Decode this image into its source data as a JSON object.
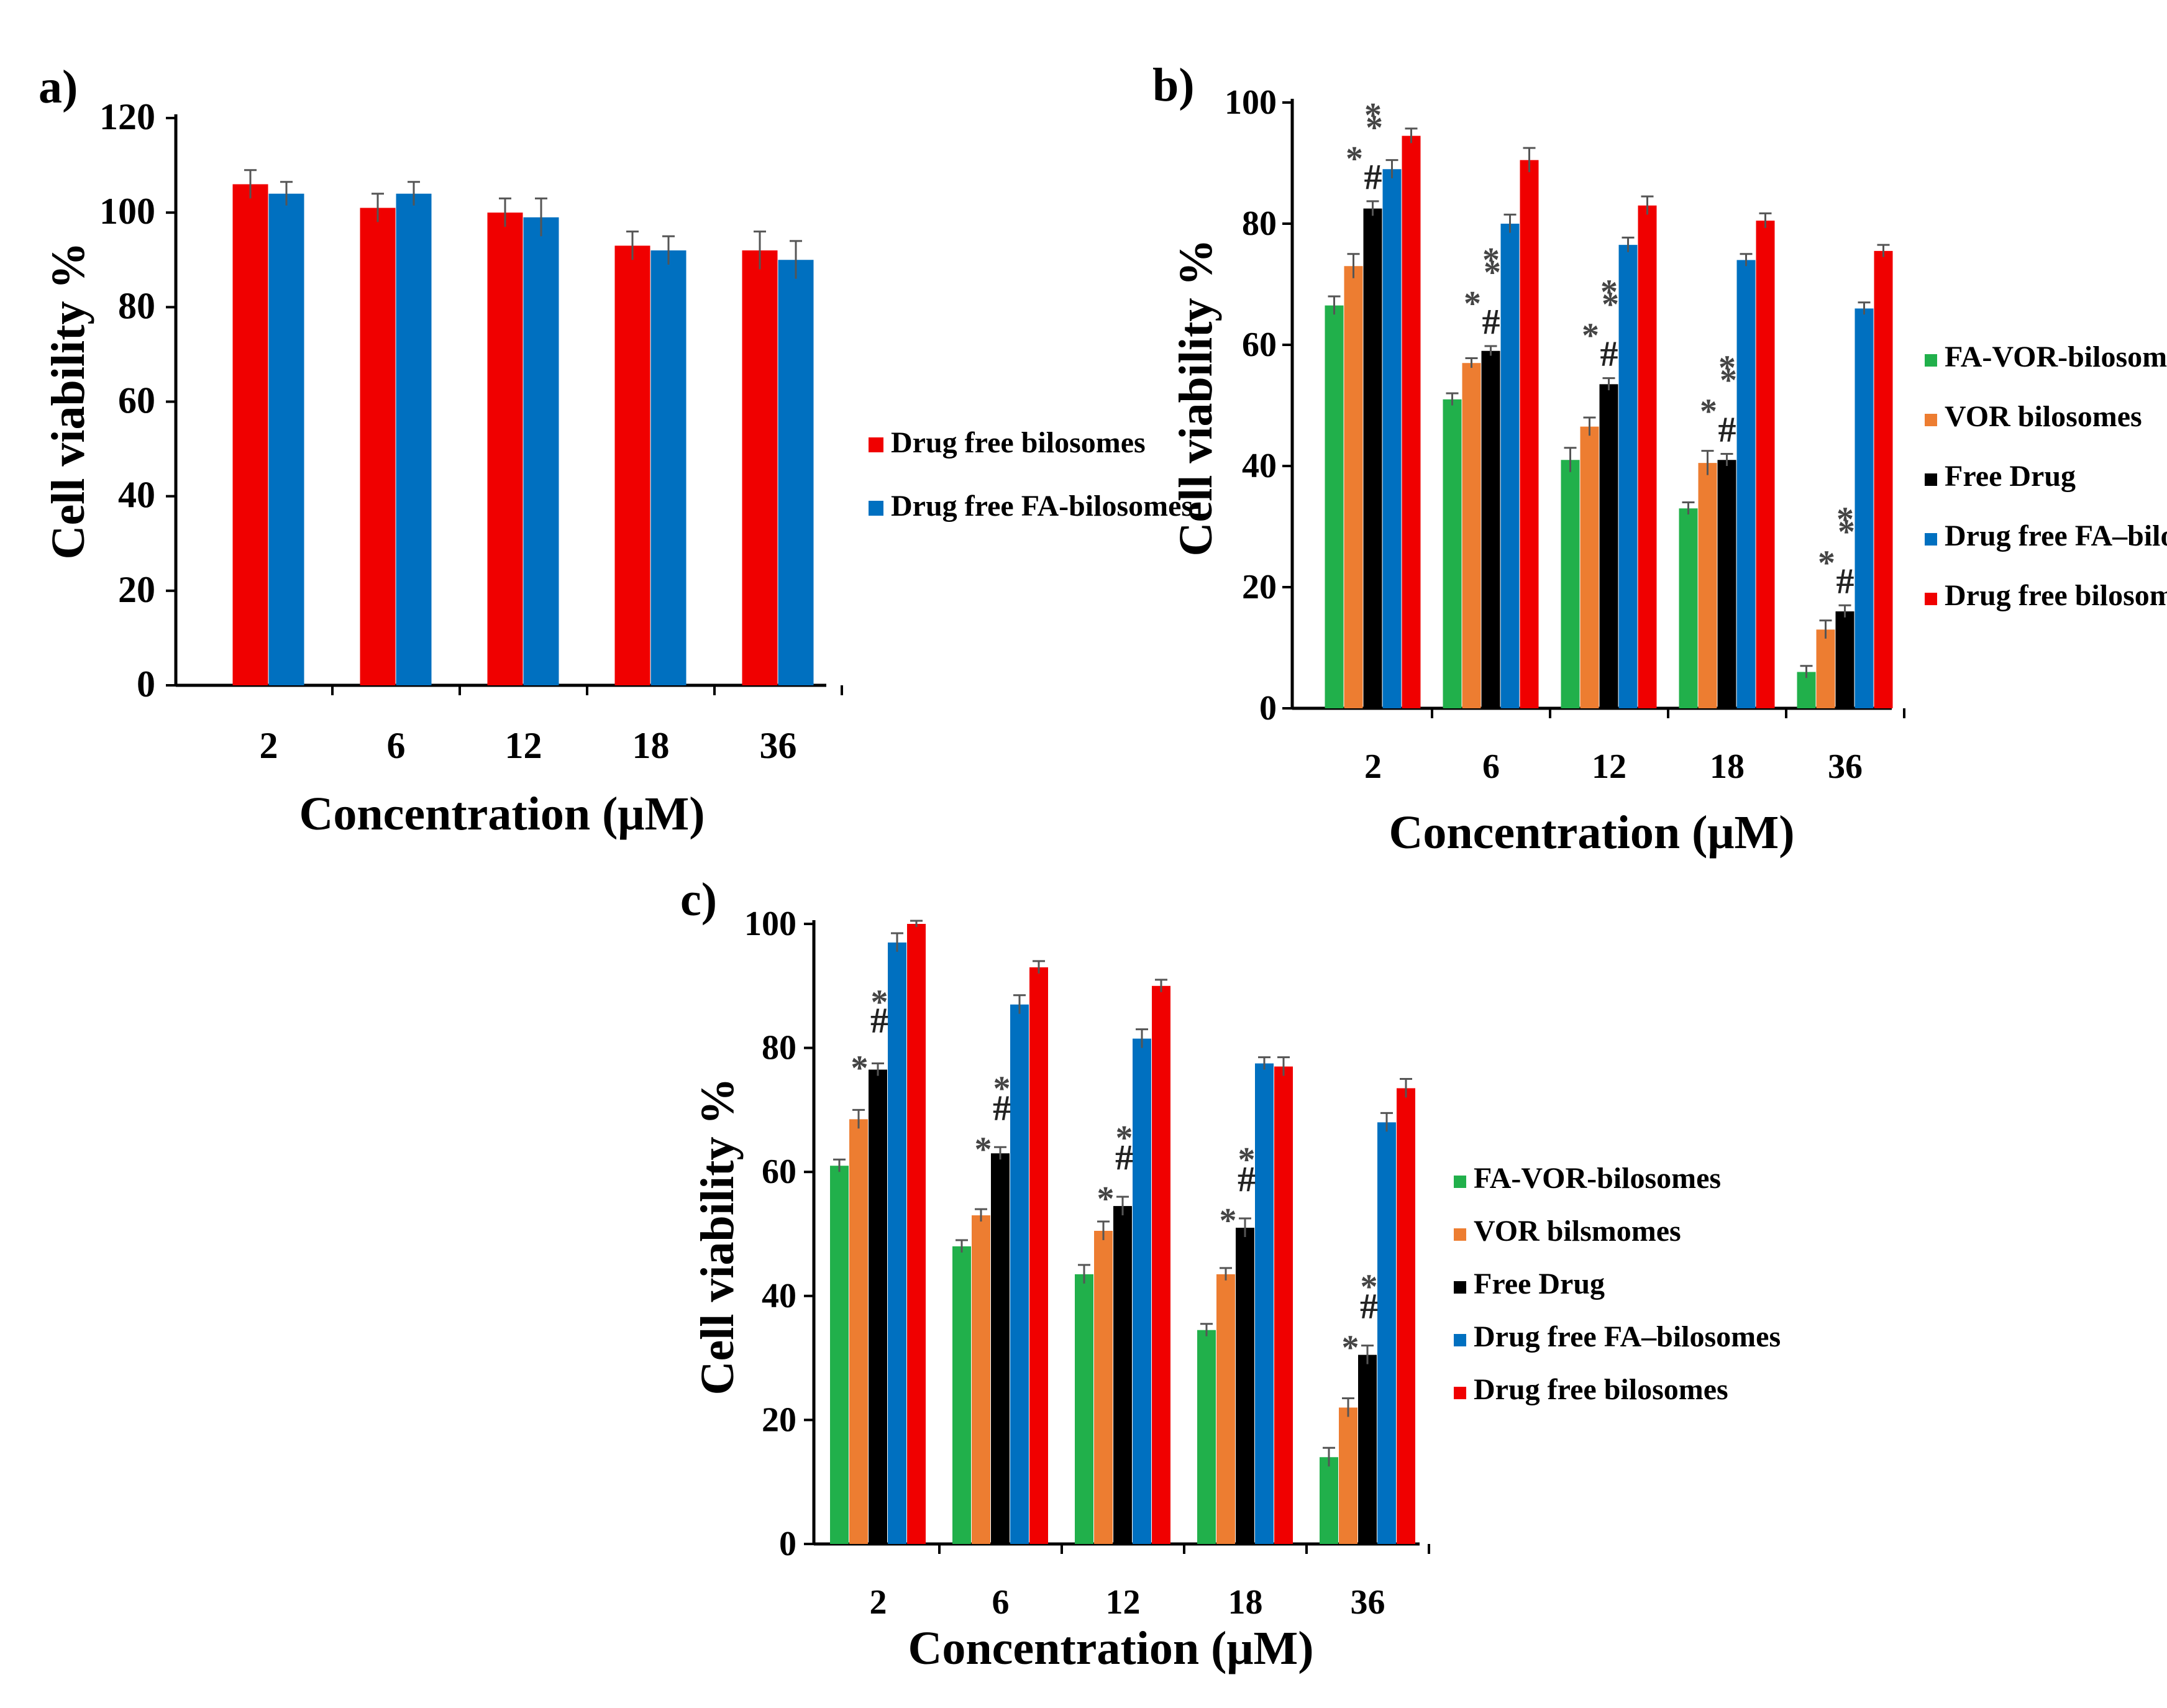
{
  "colors": {
    "red": "#f00000",
    "blue": "#0070c0",
    "green": "#21b04b",
    "orange": "#ed7d31",
    "black": "#000000"
  },
  "chart_data": [
    {
      "panel": "a)",
      "type": "bar",
      "title": "",
      "xlabel": "Concentration (μM)",
      "ylabel": "Cell viability %",
      "categories": [
        "2",
        "6",
        "12",
        "18",
        "36"
      ],
      "ylim": [
        0,
        120
      ],
      "yticks": [
        "0",
        "20",
        "40",
        "60",
        "80",
        "100",
        "120"
      ],
      "legend_position": "right",
      "series": [
        {
          "name": "Drug free bilosomes",
          "color": "red",
          "values": [
            106,
            101,
            100,
            93,
            92
          ],
          "errors": [
            3,
            3,
            3,
            3,
            4
          ]
        },
        {
          "name": "Drug free FA-bilosomes",
          "color": "blue",
          "values": [
            104,
            104,
            99,
            92,
            90
          ],
          "errors": [
            2.5,
            2.5,
            4,
            3,
            4
          ]
        }
      ],
      "annotations": []
    },
    {
      "panel": "b)",
      "type": "bar",
      "title": "",
      "xlabel": "Concentration (μM)",
      "ylabel": "Cell viability %",
      "categories": [
        "2",
        "6",
        "12",
        "18",
        "36"
      ],
      "ylim": [
        0,
        100
      ],
      "yticks": [
        "0",
        "20",
        "40",
        "60",
        "80",
        "100"
      ],
      "legend_position": "right",
      "series": [
        {
          "name": "FA-VOR-bilosomes",
          "color": "green",
          "values": [
            66.5,
            51,
            41,
            33,
            6
          ],
          "errors": [
            1.5,
            1,
            2,
            1,
            1
          ]
        },
        {
          "name": "VOR bilosomes",
          "color": "orange",
          "values": [
            73,
            57,
            46.5,
            40.5,
            13
          ],
          "errors": [
            2,
            0.8,
            1.5,
            2,
            1.5
          ]
        },
        {
          "name": "Free Drug",
          "color": "black",
          "values": [
            82.5,
            59,
            53.5,
            41,
            16
          ],
          "errors": [
            1.2,
            0.8,
            1,
            1,
            1
          ]
        },
        {
          "name": "Drug free FA–bilosomes",
          "color": "blue",
          "values": [
            89,
            80,
            76.5,
            74,
            66
          ],
          "errors": [
            1.5,
            1.5,
            1.2,
            1,
            1
          ]
        },
        {
          "name": "Drug free bilosomes",
          "color": "red",
          "values": [
            94.5,
            90.5,
            83,
            80.5,
            75.5
          ],
          "errors": [
            1.2,
            2,
            1.5,
            1.2,
            1
          ]
        }
      ],
      "annotations": [
        {
          "category": "2",
          "marks": [
            "*",
            "#",
            "*",
            "*"
          ]
        },
        {
          "category": "6",
          "marks": [
            "*",
            "#",
            "*",
            "*"
          ]
        },
        {
          "category": "12",
          "marks": [
            "*",
            "#",
            "*",
            "*"
          ]
        },
        {
          "category": "18",
          "marks": [
            "*",
            "#",
            "*",
            "*"
          ]
        },
        {
          "category": "36",
          "marks": [
            "*",
            "#",
            "*",
            "*"
          ]
        }
      ]
    },
    {
      "panel": "c)",
      "type": "bar",
      "title": "",
      "xlabel": "Concentration (μM)",
      "ylabel": "Cell viability %",
      "categories": [
        "2",
        "6",
        "12",
        "18",
        "36"
      ],
      "ylim": [
        0,
        100
      ],
      "yticks": [
        "0",
        "20",
        "40",
        "60",
        "80",
        "100"
      ],
      "legend_position": "right",
      "series": [
        {
          "name": "FA-VOR-bilosomes",
          "color": "green",
          "values": [
            61,
            48,
            43.5,
            34.5,
            14
          ],
          "errors": [
            1,
            1,
            1.5,
            1,
            1.5
          ]
        },
        {
          "name": "VOR bilsmomes",
          "color": "orange",
          "values": [
            68.5,
            53,
            50.5,
            43.5,
            22
          ],
          "errors": [
            1.5,
            1,
            1.5,
            1,
            1.5
          ]
        },
        {
          "name": "Free Drug",
          "color": "black",
          "values": [
            76.5,
            63,
            54.5,
            51,
            30.5
          ],
          "errors": [
            1,
            1,
            1.5,
            1.5,
            1.5
          ]
        },
        {
          "name": "Drug free FA–bilosomes",
          "color": "blue",
          "values": [
            97,
            87,
            81.5,
            77.5,
            68
          ],
          "errors": [
            1.5,
            1.5,
            1.5,
            1,
            1.5
          ]
        },
        {
          "name": "Drug free bilosomes",
          "color": "red",
          "values": [
            100,
            93,
            90,
            77,
            73.5
          ],
          "errors": [
            0.5,
            1,
            1,
            1.5,
            1.5
          ]
        }
      ],
      "annotations": [
        {
          "category": "2",
          "marks": [
            "*",
            "*",
            "#",
            "*"
          ]
        },
        {
          "category": "6",
          "marks": [
            "*",
            "#",
            "*"
          ]
        },
        {
          "category": "12",
          "marks": [
            "*",
            "#",
            "*"
          ]
        },
        {
          "category": "18",
          "marks": [
            "*",
            "#",
            "*"
          ]
        },
        {
          "category": "36",
          "marks": [
            "*",
            "#",
            "*"
          ]
        }
      ]
    }
  ]
}
